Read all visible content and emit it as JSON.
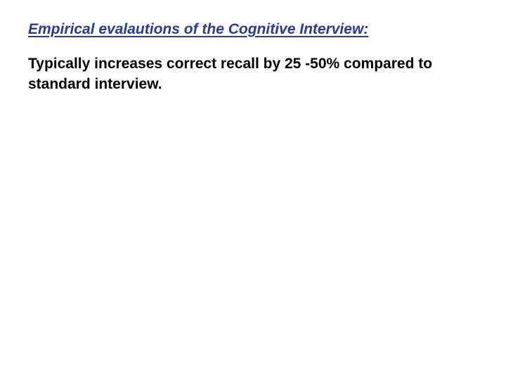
{
  "slide": {
    "heading": "Empirical evalautions of the Cognitive Interview:",
    "body": "Typically increases correct recall by 25 -50% compared to standard interview.",
    "colors": {
      "heading": "#2a3a9a",
      "body": "#000000",
      "background": "#ffffff"
    }
  }
}
